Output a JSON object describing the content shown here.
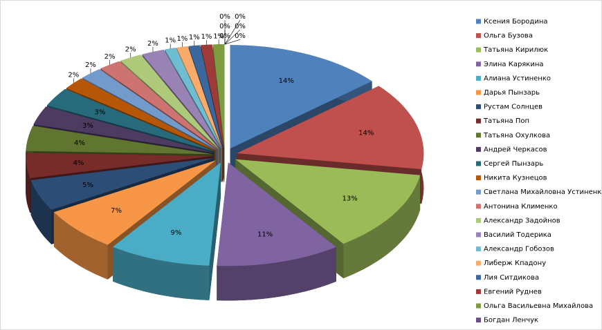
{
  "chart_data": {
    "type": "pie",
    "categories": [
      "Ксения Бородина",
      "Ольга Бузова",
      "Татьяна Кирилюк",
      "Элина Карякина",
      "Алиана Устиненко",
      "Дарья Пынзарь",
      "Рустам Солнцев",
      "Татьяна Поп",
      "Татьяна Охулкова",
      "Андрей Черкасов",
      "Сергей Пынзарь",
      "Никита Кузнецов",
      "Светлана Михайловна Устиненко",
      "Антонина Клименко",
      "Александр Задойнов",
      "Василий Тодерика",
      "Александр Гобозов",
      "Либерж Кпадону",
      "Лия Ситдикова",
      "Евгений Руднев",
      "Ольга Васильевна Михайлова",
      "Богдан Ленчук",
      null,
      null,
      null,
      null,
      null
    ],
    "values": [
      14,
      14,
      13,
      11,
      9,
      7,
      5,
      4,
      4,
      3,
      3,
      2,
      2,
      2,
      2,
      2,
      1,
      1,
      1,
      1,
      1,
      0,
      0,
      0,
      0,
      0,
      0
    ],
    "value_labels": [
      "14%",
      "14%",
      "13%",
      "11%",
      "9%",
      "7%",
      "5%",
      "4%",
      "4%",
      "3%",
      "3%",
      "2%",
      "2%",
      "2%",
      "2%",
      "2%",
      "1%",
      "1%",
      "1%",
      "1%",
      "1%",
      "0%",
      "0%",
      "0%",
      "0%",
      "0%",
      "0%"
    ],
    "colors": [
      "#4F81BD",
      "#C0504D",
      "#9BBB59",
      "#8064A2",
      "#4BACC6",
      "#F79646",
      "#2C4D75",
      "#772C2A",
      "#5F7530",
      "#4D3B62",
      "#276A7C",
      "#B65708",
      "#729ACA",
      "#CD7371",
      "#AFC97A",
      "#9983B5",
      "#6FBDD1",
      "#F9AB6B",
      "#3A679C",
      "#9E3B38",
      "#7E9D40",
      "#664F82",
      "#3891A7",
      "#D8771A",
      "#A7C0DE",
      "#DFA7A6",
      "#D1E0B3"
    ],
    "legend": "right"
  }
}
